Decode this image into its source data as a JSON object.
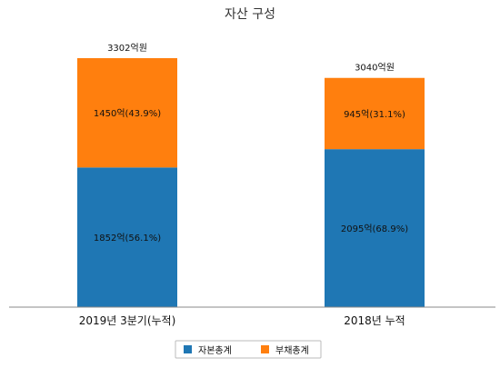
{
  "chart_data": {
    "type": "bar",
    "stacked": true,
    "title": "자산 구성",
    "categories": [
      "2019년 3분기(누적)",
      "2018년 누적"
    ],
    "totals": [
      3302,
      3040
    ],
    "total_labels": [
      "3302억원",
      "3040억원"
    ],
    "series": [
      {
        "name": "자본총계",
        "values": [
          1852,
          2095
        ],
        "labels": [
          "1852억(56.1%)",
          "2095억(68.9%)"
        ],
        "color": "#1f77b4"
      },
      {
        "name": "부채총계",
        "values": [
          1450,
          945
        ],
        "labels": [
          "1450억(43.9%)",
          "945억(31.1%)"
        ],
        "color": "#ff7f0e"
      }
    ],
    "ylim": [
      0,
      3302
    ],
    "grid": false,
    "legend": "bottom-center"
  }
}
